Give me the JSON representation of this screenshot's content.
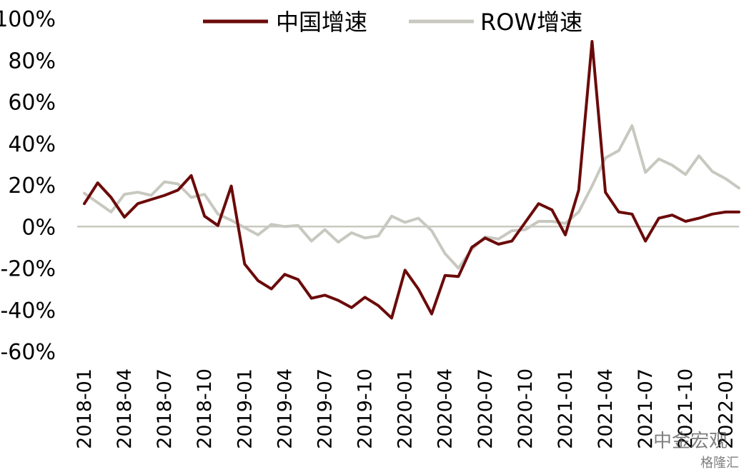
{
  "chart_data": {
    "type": "line",
    "title": "",
    "xlabel": "",
    "ylabel": "",
    "ylim": [
      -60,
      100
    ],
    "yticks": [
      "100%",
      "80%",
      "60%",
      "40%",
      "20%",
      "0%",
      "-20%",
      "-40%",
      "-60%"
    ],
    "ytick_values": [
      100,
      80,
      60,
      40,
      20,
      0,
      -20,
      -40,
      -60
    ],
    "xtick_labels": [
      "2018-01",
      "2018-04",
      "2018-07",
      "2018-10",
      "2019-01",
      "2019-04",
      "2019-07",
      "2019-10",
      "2020-01",
      "2020-04",
      "2020-07",
      "2020-10",
      "2021-01",
      "2021-04",
      "2021-07",
      "2021-10",
      "2022-01"
    ],
    "xtick_indices": [
      0,
      3,
      6,
      9,
      12,
      15,
      18,
      21,
      24,
      27,
      30,
      33,
      36,
      39,
      42,
      45,
      48
    ],
    "legend_position": "top",
    "grid": false,
    "zero_line": true,
    "x": [
      "2018-01",
      "2018-02",
      "2018-03",
      "2018-04",
      "2018-05",
      "2018-06",
      "2018-07",
      "2018-08",
      "2018-09",
      "2018-10",
      "2018-11",
      "2018-12",
      "2019-01",
      "2019-02",
      "2019-03",
      "2019-04",
      "2019-05",
      "2019-06",
      "2019-07",
      "2019-08",
      "2019-09",
      "2019-10",
      "2019-11",
      "2019-12",
      "2020-01",
      "2020-02",
      "2020-03",
      "2020-04",
      "2020-05",
      "2020-06",
      "2020-07",
      "2020-08",
      "2020-09",
      "2020-10",
      "2020-11",
      "2020-12",
      "2021-01",
      "2021-02",
      "2021-03",
      "2021-04",
      "2021-05",
      "2021-06",
      "2021-07",
      "2021-08",
      "2021-09",
      "2021-10",
      "2021-11",
      "2021-12",
      "2022-01",
      "2022-02"
    ],
    "series": [
      {
        "name": "中国增速",
        "color": "#6b0a0a",
        "values": [
          11,
          21,
          14,
          4.5,
          11,
          13,
          15,
          17.5,
          24.5,
          5,
          0.5,
          19.5,
          -18,
          -26,
          -30,
          -23,
          -25.5,
          -34.5,
          -33,
          -35.5,
          -39,
          -34,
          -38,
          -44,
          -21,
          -30,
          -42,
          -23.5,
          -24,
          -10,
          -5.5,
          -8.5,
          -7,
          2,
          11,
          8,
          -4,
          17.5,
          89,
          16.5,
          7,
          6,
          -7,
          4,
          5.5,
          2.5,
          4,
          6,
          7,
          7
        ]
      },
      {
        "name": "ROW增速",
        "color": "#c8c8c0",
        "values": [
          16,
          11.5,
          7,
          15.5,
          16.5,
          15,
          21.5,
          20.5,
          14,
          15.5,
          6,
          3,
          -0.5,
          -4,
          1,
          0,
          0.5,
          -7,
          -1.5,
          -7.5,
          -3,
          -5.5,
          -4.5,
          5,
          2,
          4,
          -2,
          -13,
          -20,
          -11,
          -5,
          -6,
          -2,
          -1.5,
          2.5,
          2.5,
          1.5,
          7,
          19.5,
          33,
          36.5,
          48.5,
          26,
          32.5,
          29.5,
          25,
          34,
          26.5,
          23,
          18.5
        ]
      }
    ]
  },
  "watermark": {
    "text": "中金宏观",
    "sub": "格隆汇"
  }
}
